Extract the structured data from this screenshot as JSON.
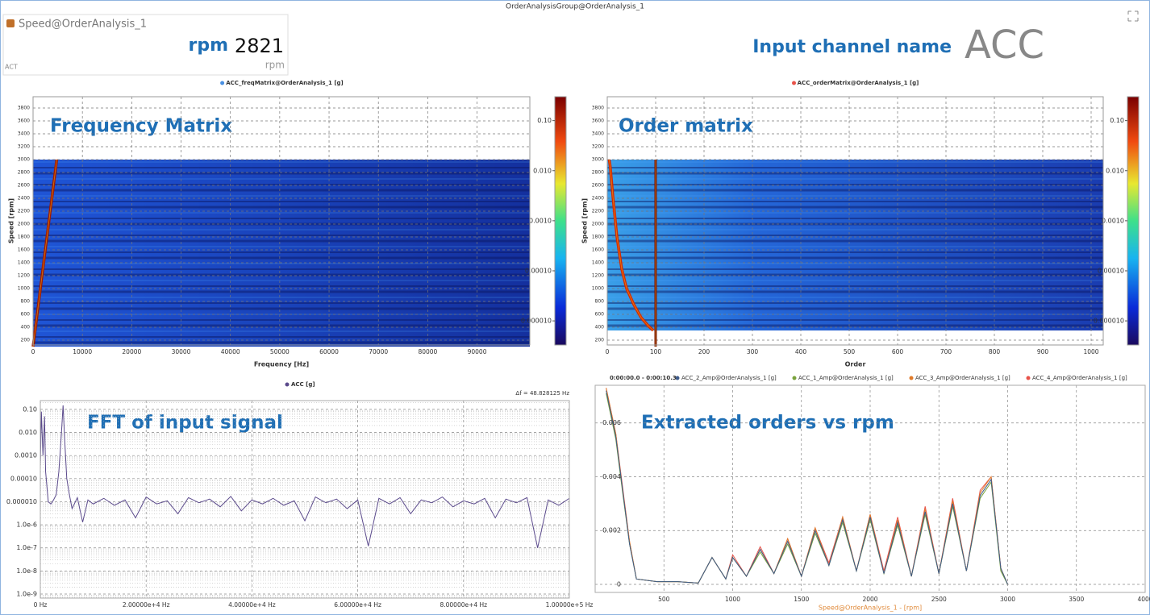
{
  "window": {
    "title": "OrderAnalysisGroup@OrderAnalysis_1"
  },
  "speed_widget": {
    "name": "Speed@OrderAnalysis_1",
    "unit_label": "rpm",
    "value": 2821,
    "unit": "rpm",
    "status": "ACT"
  },
  "channel": {
    "label": "Input channel name",
    "value": "ACC"
  },
  "annotations": [
    "Frequency Matrix",
    "Order matrix",
    "FFT of input signal",
    "Extracted orders vs rpm"
  ],
  "chart_data": [
    {
      "type": "heatmap",
      "legend": {
        "name": "ACC_freqMatrix@OrderAnalysis_1 [g]",
        "color": "#4a90e2"
      },
      "xlabel": "Frequency [Hz]",
      "ylabel": "Speed [rpm]",
      "xlim": [
        0,
        100700
      ],
      "xticks": [
        0,
        10000,
        20000,
        30000,
        40000,
        50000,
        60000,
        70000,
        80000,
        90000
      ],
      "ylim": [
        125,
        3975
      ],
      "yticks": [
        200,
        400,
        600,
        800,
        1000,
        1200,
        1400,
        1600,
        1800,
        2000,
        2200,
        2400,
        2600,
        2800,
        3000,
        3200,
        3400,
        3600,
        3800
      ],
      "grid": true,
      "clim": [
        3.3e-06,
        0.3
      ],
      "clog": true,
      "cticks": [
        {
          "value": 0.1,
          "label": "0.10"
        },
        {
          "value": 0.01,
          "label": "0.010"
        },
        {
          "value": 0.001,
          "label": "0.0010"
        },
        {
          "value": 0.0001,
          "label": "0.00010"
        },
        {
          "value": 1e-05,
          "label": "0.000010"
        }
      ],
      "ridges": [
        {
          "color": "#a01a00",
          "x": [
            0,
            4800
          ],
          "y": [
            100,
            3000
          ]
        }
      ]
    },
    {
      "type": "heatmap",
      "legend": {
        "name": "ACC_orderMatrix@OrderAnalysis_1 [g]",
        "color": "#e8534a"
      },
      "xlabel": "Order",
      "ylabel": "Speed [rpm]",
      "xlim": [
        0,
        1025
      ],
      "xticks": [
        0,
        100,
        200,
        300,
        400,
        500,
        600,
        700,
        800,
        900,
        1000
      ],
      "ylim": [
        125,
        3975
      ],
      "yticks": [
        200,
        400,
        600,
        800,
        1000,
        1200,
        1400,
        1600,
        1800,
        2000,
        2200,
        2400,
        2600,
        2800,
        3000,
        3200,
        3400,
        3600,
        3800
      ],
      "grid": true,
      "clim": [
        3.3e-06,
        0.3
      ],
      "clog": true,
      "cticks": [
        {
          "value": 0.1,
          "label": "0.10"
        },
        {
          "value": 0.01,
          "label": "0.010"
        },
        {
          "value": 0.001,
          "label": "0.0010"
        },
        {
          "value": 0.0001,
          "label": "0.00010"
        },
        {
          "value": 1e-05,
          "label": "0.000010"
        }
      ],
      "ridges": [
        {
          "color": "#d42a00",
          "x": [
            95,
            85,
            70,
            55,
            40,
            30,
            20,
            12,
            6,
            4
          ],
          "y": [
            350,
            420,
            550,
            750,
            1000,
            1300,
            1800,
            2400,
            2900,
            3000
          ]
        },
        {
          "color": "#7a1000",
          "x": [
            100,
            100
          ],
          "y": [
            100,
            3000
          ]
        }
      ]
    },
    {
      "type": "line",
      "ylog": true,
      "grid": true,
      "resolution_label": "Δf = 48.828125 Hz",
      "xlim": [
        0,
        100000
      ],
      "xticks": [
        {
          "value": 0,
          "label": "0 Hz"
        },
        {
          "value": 20000,
          "label": "2.00000e+4 Hz"
        },
        {
          "value": 40000,
          "label": "4.00000e+4 Hz"
        },
        {
          "value": 60000,
          "label": "6.00000e+4 Hz"
        },
        {
          "value": 80000,
          "label": "8.00000e+4 Hz"
        },
        {
          "value": 100000,
          "label": "1.00000e+5 Hz"
        }
      ],
      "ylim": [
        6.7e-10,
        0.24
      ],
      "yticks": [
        {
          "value": 0.1,
          "label": "0.10"
        },
        {
          "value": 0.01,
          "label": "0.010"
        },
        {
          "value": 0.001,
          "label": "0.0010"
        },
        {
          "value": 0.0001,
          "label": "0.00010"
        },
        {
          "value": 1e-05,
          "label": "0.000010"
        },
        {
          "value": 1e-06,
          "label": "1.0e-6"
        },
        {
          "value": 1e-07,
          "label": "1.0e-7"
        },
        {
          "value": 1e-08,
          "label": "1.0e-8"
        },
        {
          "value": 1e-09,
          "label": "1.0e-9"
        }
      ],
      "x": [
        0,
        200,
        500,
        800,
        1000,
        1500,
        2000,
        2500,
        3000,
        3500,
        4000,
        4300,
        4600,
        5000,
        5500,
        6000,
        7000,
        8000,
        9000,
        10000,
        12000,
        14000,
        16000,
        18000,
        20000,
        22000,
        24000,
        26000,
        28000,
        30000,
        32000,
        34000,
        36000,
        38000,
        40000,
        42000,
        44000,
        46000,
        48000,
        50000,
        52000,
        54000,
        56000,
        58000,
        60000,
        62000,
        64000,
        66000,
        68000,
        70000,
        72000,
        74000,
        76000,
        78000,
        80000,
        82000,
        84000,
        86000,
        88000,
        90000,
        92000,
        94000,
        96000,
        98000,
        100000
      ],
      "series": [
        {
          "name": "ACC [g]",
          "color": "#5b4a8c",
          "values": [
            0.0003,
            0.08,
            0.001,
            0.05,
            0.0002,
            1e-05,
            8e-06,
            1.2e-05,
            2e-05,
            0.0002,
            0.01,
            0.15,
            0.005,
            0.0001,
            2e-05,
            5e-06,
            1.5e-05,
            1.3e-06,
            1.2e-05,
            8e-06,
            1.4e-05,
            7e-06,
            1.2e-05,
            2e-06,
            1.6e-05,
            8e-06,
            1.1e-05,
            3e-06,
            1.5e-05,
            9e-06,
            1.3e-05,
            6e-06,
            1.7e-05,
            4e-06,
            1.2e-05,
            8e-06,
            1.4e-05,
            7e-06,
            1.1e-05,
            1.5e-06,
            1.6e-05,
            9e-06,
            1.3e-05,
            5e-06,
            1.2e-05,
            1.2e-07,
            1.4e-05,
            8e-06,
            1.5e-05,
            3e-06,
            1.2e-05,
            9e-06,
            1.6e-05,
            6e-06,
            1.1e-05,
            8e-06,
            1.4e-05,
            2e-06,
            1.3e-05,
            9e-06,
            1.5e-05,
            1e-07,
            1.2e-05,
            7e-06,
            1.4e-05
          ]
        }
      ]
    },
    {
      "type": "line",
      "grid": true,
      "time_range": "0:00:00.0 - 0:00:10.3",
      "xlabel": "Speed@OrderAnalysis_1 - [rpm]",
      "xlim": [
        0,
        4000
      ],
      "xticks": [
        500,
        1000,
        1500,
        2000,
        2500,
        3000,
        3500,
        4000
      ],
      "ylim": [
        -0.0003,
        0.0074
      ],
      "yticks": [
        0,
        0.002,
        0.004,
        0.006
      ],
      "x": [
        80,
        150,
        200,
        250,
        300,
        450,
        600,
        750,
        850,
        950,
        1000,
        1100,
        1200,
        1300,
        1400,
        1500,
        1600,
        1700,
        1800,
        1900,
        2000,
        2100,
        2200,
        2300,
        2400,
        2500,
        2600,
        2700,
        2800,
        2880,
        2950,
        3000
      ],
      "series": [
        {
          "name": "ACC_2_Amp@OrderAnalysis_1 [g]",
          "color": "#3d5a8a",
          "values": [
            0.0072,
            0.0055,
            0.0035,
            0.0015,
            0.0002,
            0.0001,
            0.0001,
            5e-05,
            0.001,
            0.0002,
            0.001,
            0.0003,
            0.0013,
            0.0004,
            0.0016,
            0.0003,
            0.002,
            0.0007,
            0.0024,
            0.0005,
            0.0025,
            0.0004,
            0.0023,
            0.0003,
            0.0027,
            0.0004,
            0.003,
            0.0005,
            0.0033,
            0.0039,
            0.0006,
            0
          ]
        },
        {
          "name": "ACC_1_Amp@OrderAnalysis_1 [g]",
          "color": "#7aa33c",
          "values": [
            0.0071,
            0.0054,
            0.0034,
            0.0015,
            0.0002,
            0.0001,
            0.0001,
            5e-05,
            0.001,
            0.0002,
            0.001,
            0.0003,
            0.0012,
            0.0004,
            0.0015,
            0.0003,
            0.0019,
            0.0007,
            0.0023,
            0.0005,
            0.0024,
            0.0004,
            0.0022,
            0.0003,
            0.0026,
            0.0004,
            0.0029,
            0.0005,
            0.0032,
            0.0038,
            0.0005,
            0
          ]
        },
        {
          "name": "ACC_3_Amp@OrderAnalysis_1 [g]",
          "color": "#e07b2a",
          "values": [
            0.0073,
            0.0056,
            0.0035,
            0.0016,
            0.0002,
            0.0001,
            0.0001,
            5e-05,
            0.001,
            0.0002,
            0.001,
            0.0003,
            0.0013,
            0.0004,
            0.0017,
            0.0003,
            0.0021,
            0.0007,
            0.0025,
            0.0005,
            0.0026,
            0.0004,
            0.0024,
            0.0003,
            0.0028,
            0.0004,
            0.0031,
            0.0005,
            0.0034,
            0.004,
            0.0006,
            0
          ]
        },
        {
          "name": "ACC_4_Amp@OrderAnalysis_1 [g]",
          "color": "#e8534a",
          "values": [
            0.0073,
            0.0056,
            0.0036,
            0.0016,
            0.0002,
            0.0001,
            0.0001,
            5e-05,
            0.001,
            0.0002,
            0.0011,
            0.0003,
            0.0014,
            0.0004,
            0.0017,
            0.0003,
            0.0021,
            0.0008,
            0.0025,
            0.0005,
            0.0026,
            0.0005,
            0.0025,
            0.0003,
            0.0029,
            0.0004,
            0.0032,
            0.0005,
            0.0035,
            0.004,
            0.0006,
            0
          ]
        }
      ]
    }
  ]
}
